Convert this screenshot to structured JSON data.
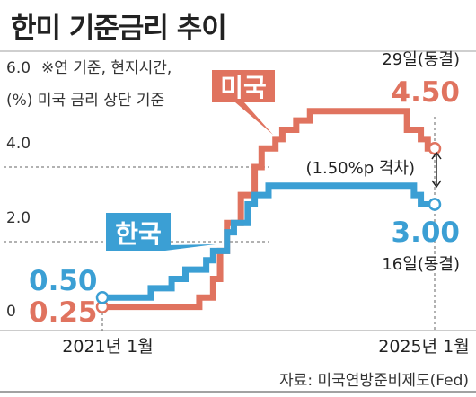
{
  "title": "한미 기준금리 추이",
  "notes": {
    "line1": "※연 기준, 현지시간,",
    "line2": "(%) 미국 금리 상단 기준"
  },
  "source": "자료: 미국연방준비제도(Fed)",
  "colors": {
    "us": "#e0735f",
    "korea": "#3b9fd4",
    "dashed": "#666666"
  },
  "chart_data": {
    "type": "line",
    "title": "한미 기준금리 추이",
    "ylabel": "(%)",
    "ylim": [
      0,
      6
    ],
    "yticks": [
      "6.0",
      "4.0",
      "2.0",
      "0"
    ],
    "xticks": [
      "2021년 1월",
      "2025년 1월"
    ],
    "series": [
      {
        "name": "미국",
        "color": "#e0735f",
        "start_label": "0.25",
        "end_label": "4.50",
        "end_date_label": "29일(동결)",
        "points": [
          [
            "2021-01",
            0.25
          ],
          [
            "2022-03",
            0.5
          ],
          [
            "2022-05",
            1.0
          ],
          [
            "2022-06",
            1.75
          ],
          [
            "2022-07",
            2.5
          ],
          [
            "2022-09",
            3.25
          ],
          [
            "2022-11",
            4.0
          ],
          [
            "2022-12",
            4.5
          ],
          [
            "2023-02",
            4.75
          ],
          [
            "2023-03",
            5.0
          ],
          [
            "2023-05",
            5.25
          ],
          [
            "2023-07",
            5.5
          ],
          [
            "2024-09",
            5.0
          ],
          [
            "2024-11",
            4.75
          ],
          [
            "2024-12",
            4.5
          ],
          [
            "2025-01",
            4.5
          ]
        ]
      },
      {
        "name": "한국",
        "color": "#3b9fd4",
        "start_label": "0.50",
        "end_label": "3.00",
        "end_date_label": "16일(동결)",
        "points": [
          [
            "2021-01",
            0.5
          ],
          [
            "2021-08",
            0.75
          ],
          [
            "2021-11",
            1.0
          ],
          [
            "2022-01",
            1.25
          ],
          [
            "2022-04",
            1.5
          ],
          [
            "2022-05",
            1.75
          ],
          [
            "2022-07",
            2.25
          ],
          [
            "2022-08",
            2.5
          ],
          [
            "2022-10",
            3.0
          ],
          [
            "2022-11",
            3.25
          ],
          [
            "2023-01",
            3.5
          ],
          [
            "2024-10",
            3.25
          ],
          [
            "2024-11",
            3.0
          ],
          [
            "2025-01",
            3.0
          ]
        ]
      }
    ],
    "annotations": {
      "gap": "(1.50%p 격차)"
    }
  }
}
